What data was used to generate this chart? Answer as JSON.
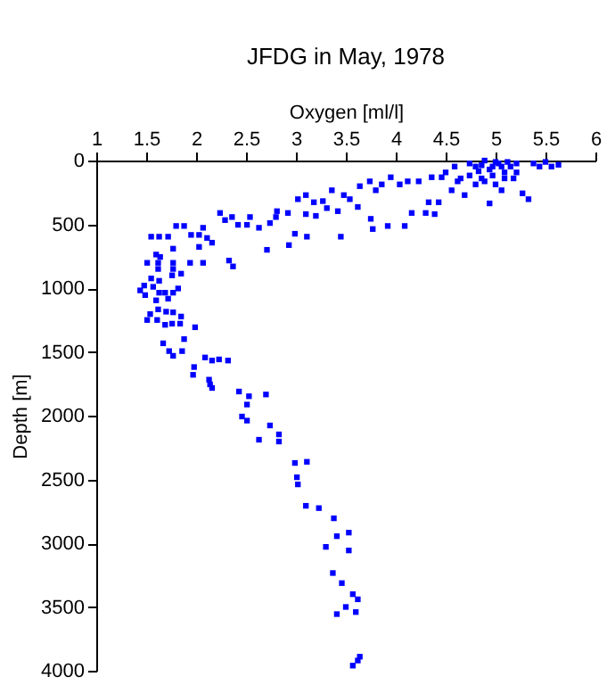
{
  "chart_data": {
    "type": "scatter",
    "title": "JFDG in May, 1978",
    "xlabel": "Oxygen [ml/l]",
    "ylabel": "Depth [m]",
    "xlim": [
      1,
      6
    ],
    "xticks": [
      1,
      1.5,
      2,
      2.5,
      3,
      3.5,
      4,
      4.5,
      5,
      5.5,
      6
    ],
    "ylim": [
      4000,
      0
    ],
    "yticks": [
      0,
      500,
      1000,
      1500,
      2000,
      2500,
      3000,
      3500,
      4000
    ],
    "marker": "square",
    "grid": false,
    "series": [
      {
        "color": "#0000ff",
        "x": [
          1.51,
          1.62,
          1.77,
          1.94,
          2.07,
          2.33,
          2.37,
          1.6,
          1.64,
          1.62,
          1.77,
          1.85,
          1.76,
          1.55,
          1.63,
          1.44,
          1.48,
          1.57,
          1.63,
          1.69,
          1.77,
          1.82,
          1.49,
          1.6,
          1.72,
          1.62,
          1.7,
          1.77,
          1.54,
          1.51,
          1.61,
          1.69,
          1.76,
          1.84,
          1.85,
          1.99,
          1.88,
          1.67,
          1.73,
          1.77,
          1.86,
          2.09,
          2.16,
          2.23,
          2.32,
          1.98,
          1.97,
          2.13,
          2.14,
          2.16,
          2.43,
          2.53,
          2.7,
          2.51,
          2.46,
          2.51,
          2.74,
          2.63,
          2.83,
          2.83,
          2.99,
          3.11,
          3.01,
          3.02,
          3.1,
          3.23,
          3.38,
          3.53,
          3.41,
          3.3,
          3.53,
          3.37,
          3.46,
          3.5,
          3.41,
          3.57,
          3.62,
          3.6,
          3.64,
          3.57,
          3.62,
          1.55,
          1.63,
          1.72,
          1.8,
          1.88,
          1.95,
          2.03,
          2.07,
          2.11,
          2.16,
          2.03,
          1.77,
          2.24,
          2.29,
          2.36,
          2.42,
          2.51,
          2.54,
          2.63,
          2.71,
          2.74,
          2.8,
          2.81,
          2.92,
          2.93,
          2.99,
          3.02,
          3.1,
          3.1,
          3.11,
          3.18,
          3.2,
          3.27,
          3.31,
          3.36,
          3.42,
          3.45,
          3.48,
          3.54,
          3.64,
          3.62,
          3.74,
          3.75,
          3.77,
          3.8,
          3.86,
          3.95,
          3.92,
          4.04,
          4.09,
          4.12,
          4.16,
          4.23,
          4.3,
          4.33,
          4.36,
          4.39,
          4.43,
          4.46,
          4.5,
          4.56,
          4.59,
          4.62,
          4.69,
          4.74,
          4.8,
          4.86,
          4.89,
          4.94,
          4.97,
          5.0,
          5.03,
          5.06,
          5.09,
          5.15,
          5.21,
          5.27,
          5.33,
          5.38,
          5.44,
          5.5,
          5.56,
          5.63,
          5.21,
          4.86,
          4.74,
          5.12,
          4.94,
          4.8,
          4.89,
          4.65,
          4.97,
          5.09,
          5.18,
          5.0,
          4.83,
          5.06
        ],
        "values": [
          802,
          802,
          802,
          802,
          802,
          784,
          830,
          737,
          756,
          850,
          850,
          887,
          900,
          924,
          943,
          1018,
          980,
          990,
          1036,
          1036,
          1036,
          1003,
          1055,
          1096,
          1083,
          1167,
          1185,
          1190,
          1204,
          1250,
          1250,
          1288,
          1279,
          1279,
          1223,
          1307,
          1400,
          1433,
          1494,
          1531,
          1494,
          1544,
          1568,
          1559,
          1568,
          1619,
          1680,
          1718,
          1755,
          1783,
          1811,
          1848,
          1834,
          1913,
          2007,
          2039,
          2077,
          2189,
          2147,
          2203,
          2371,
          2362,
          2483,
          2539,
          2707,
          2725,
          2805,
          2917,
          2945,
          3029,
          3057,
          3234,
          3313,
          3500,
          3556,
          3400,
          3440,
          3540,
          3890,
          3960,
          3920,
          597,
          597,
          597,
          513,
          513,
          583,
          583,
          527,
          607,
          644,
          677,
          691,
          411,
          467,
          443,
          504,
          504,
          443,
          527,
          700,
          490,
          443,
          397,
          411,
          663,
          574,
          303,
          271,
          420,
          597,
          327,
          434,
          318,
          373,
          233,
          397,
          597,
          271,
          303,
          201,
          364,
          163,
          457,
          537,
          233,
          187,
          131,
          513,
          187,
          513,
          163,
          411,
          163,
          411,
          327,
          131,
          420,
          327,
          131,
          93,
          233,
          47,
          163,
          271,
          117,
          47,
          140,
          0,
          336,
          47,
          187,
          23,
          233,
          93,
          47,
          93,
          257,
          303,
          23,
          47,
          11,
          47,
          33,
          23,
          37,
          23,
          11,
          70,
          187,
          163,
          140,
          117,
          140,
          140,
          11,
          84,
          47
        ]
      }
    ]
  }
}
